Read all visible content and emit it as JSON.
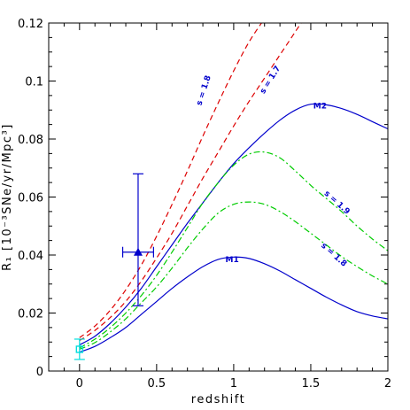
{
  "chart_data": {
    "type": "line",
    "xlabel": "redshift",
    "ylabel": "R₁ [10⁻³SNe/yr/Mpc³]",
    "xlim": [
      -0.2,
      2.0
    ],
    "ylim": [
      0.0,
      0.12
    ],
    "xticks": [
      "0",
      "0.5",
      "1",
      "1.5",
      "2"
    ],
    "yticks": [
      "0",
      "0.02",
      "0.04",
      "0.06",
      "0.08",
      "0.1",
      "0.12"
    ],
    "xtick_values": [
      0,
      0.5,
      1,
      1.5,
      2
    ],
    "ytick_values": [
      0,
      0.02,
      0.04,
      0.06,
      0.08,
      0.1,
      0.12
    ],
    "grid": false,
    "series": [
      {
        "name": "M2",
        "style": "solid",
        "color": "#0000cc",
        "x": [
          0,
          0.1,
          0.2,
          0.3,
          0.4,
          0.5,
          0.6,
          0.7,
          0.8,
          0.9,
          1.0,
          1.1,
          1.2,
          1.3,
          1.4,
          1.5,
          1.6,
          1.7,
          1.8,
          1.9,
          2.0
        ],
        "y": [
          0.009,
          0.012,
          0.0165,
          0.022,
          0.0285,
          0.036,
          0.0435,
          0.051,
          0.058,
          0.065,
          0.0715,
          0.077,
          0.082,
          0.0865,
          0.09,
          0.092,
          0.0918,
          0.0905,
          0.0885,
          0.086,
          0.0835
        ]
      },
      {
        "name": "M1",
        "style": "solid",
        "color": "#0000cc",
        "x": [
          0,
          0.1,
          0.2,
          0.3,
          0.4,
          0.5,
          0.6,
          0.7,
          0.8,
          0.9,
          1.0,
          1.1,
          1.2,
          1.3,
          1.4,
          1.5,
          1.6,
          1.7,
          1.8,
          1.9,
          2.0
        ],
        "y": [
          0.0065,
          0.0085,
          0.0115,
          0.015,
          0.0195,
          0.024,
          0.0285,
          0.0325,
          0.036,
          0.0385,
          0.0393,
          0.0388,
          0.037,
          0.0345,
          0.0315,
          0.0285,
          0.0255,
          0.0228,
          0.0205,
          0.019,
          0.018
        ]
      },
      {
        "name": "s = 1.8",
        "style": "dashed",
        "color": "#dd0000",
        "x": [
          0,
          0.1,
          0.2,
          0.3,
          0.4,
          0.5,
          0.6,
          0.7,
          0.8,
          0.9,
          1.0,
          1.1,
          1.2,
          1.25
        ],
        "y": [
          0.0115,
          0.0155,
          0.021,
          0.028,
          0.0365,
          0.0465,
          0.0575,
          0.069,
          0.081,
          0.0925,
          0.1035,
          0.1135,
          0.1215,
          0.125
        ]
      },
      {
        "name": "s = 1.7",
        "style": "dashed",
        "color": "#dd0000",
        "x": [
          0,
          0.1,
          0.2,
          0.3,
          0.4,
          0.5,
          0.6,
          0.7,
          0.8,
          0.9,
          1.0,
          1.1,
          1.2,
          1.3,
          1.4,
          1.45
        ],
        "y": [
          0.0105,
          0.014,
          0.0185,
          0.024,
          0.031,
          0.039,
          0.0475,
          0.057,
          0.0665,
          0.0755,
          0.0845,
          0.093,
          0.101,
          0.109,
          0.117,
          0.121
        ]
      },
      {
        "name": "s = 1.9",
        "style": "dashdot",
        "color": "#00cc00",
        "x": [
          0,
          0.1,
          0.2,
          0.3,
          0.4,
          0.5,
          0.6,
          0.7,
          0.8,
          0.9,
          1.0,
          1.1,
          1.2,
          1.3,
          1.4,
          1.5,
          1.6,
          1.7,
          1.8,
          1.9,
          2.0
        ],
        "y": [
          0.008,
          0.011,
          0.015,
          0.02,
          0.026,
          0.033,
          0.041,
          0.0495,
          0.058,
          0.065,
          0.071,
          0.0748,
          0.0755,
          0.0735,
          0.069,
          0.064,
          0.0595,
          0.055,
          0.05,
          0.0455,
          0.0415
        ]
      },
      {
        "name": "s = 1.8",
        "style": "dashdot",
        "color": "#00cc00",
        "x": [
          0,
          0.1,
          0.2,
          0.3,
          0.4,
          0.5,
          0.6,
          0.7,
          0.8,
          0.9,
          1.0,
          1.1,
          1.2,
          1.3,
          1.4,
          1.5,
          1.6,
          1.7,
          1.8,
          1.9,
          2.0
        ],
        "y": [
          0.0075,
          0.0098,
          0.0135,
          0.018,
          0.0235,
          0.029,
          0.0355,
          0.0425,
          0.049,
          0.0545,
          0.0575,
          0.0583,
          0.0575,
          0.055,
          0.0515,
          0.0475,
          0.0435,
          0.0395,
          0.036,
          0.0328,
          0.03
        ]
      }
    ],
    "observations": [
      {
        "x": 0.38,
        "y": 0.041,
        "xerr": [
          0.28,
          0.48
        ],
        "yerr": [
          0.0225,
          0.068
        ],
        "marker": "triangle",
        "color": "#0000cc"
      },
      {
        "x": 0.0,
        "y": 0.0075,
        "yerr": [
          0.004,
          0.011
        ],
        "marker": "square",
        "color": "#00dddd"
      }
    ],
    "annotations": [
      {
        "text": "M2",
        "x": 1.56,
        "y": 0.0905,
        "angle": 0,
        "color": "#0000cc"
      },
      {
        "text": "M1",
        "x": 0.99,
        "y": 0.0375,
        "angle": 0,
        "color": "#0000cc"
      },
      {
        "text": "s = 1.8",
        "x": 0.82,
        "y": 0.0965,
        "angle": -72,
        "color": "#0000cc"
      },
      {
        "text": "s = 1.7",
        "x": 1.25,
        "y": 0.1,
        "angle": -58,
        "color": "#0000cc"
      },
      {
        "text": "s = 1.9",
        "x": 1.66,
        "y": 0.0575,
        "angle": 42,
        "color": "#0000cc"
      },
      {
        "text": "s = 1.8",
        "x": 1.64,
        "y": 0.0395,
        "angle": 42,
        "color": "#0000cc"
      }
    ]
  }
}
